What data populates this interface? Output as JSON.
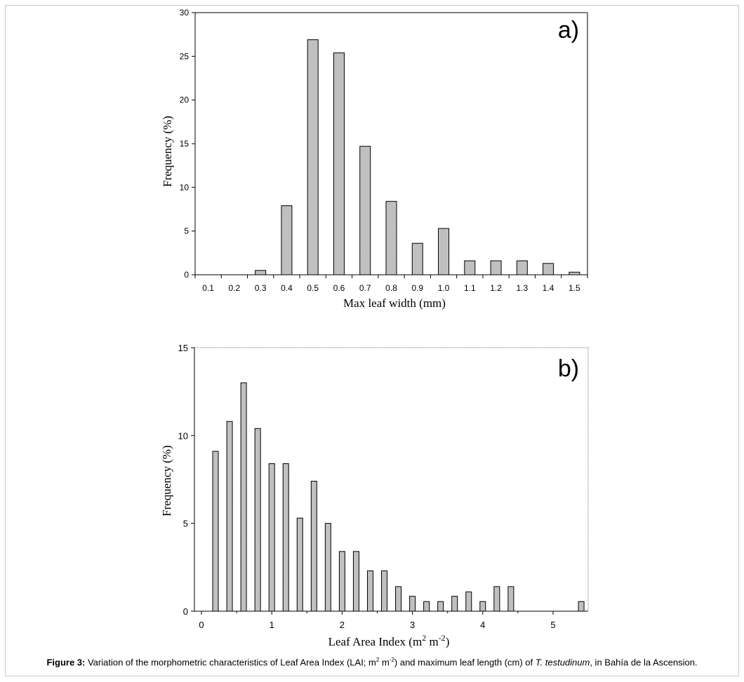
{
  "colors": {
    "bar_fill": "#d0d0d0",
    "bar_stroke": "#000000",
    "axis": "#000000",
    "frame": "#c8c8c8"
  },
  "chart_data": [
    {
      "type": "bar",
      "panel_label": "a)",
      "title": "",
      "xlabel": "Max leaf width (mm)",
      "ylabel": "Frequency (%)",
      "ylim": [
        0,
        30
      ],
      "yticks": [
        0,
        5,
        10,
        15,
        20,
        25,
        30
      ],
      "categories": [
        "0.1",
        "0.2",
        "0.3",
        "0.4",
        "0.5",
        "0.6",
        "0.7",
        "0.8",
        "0.9",
        "1.0",
        "1.1",
        "1.2",
        "1.3",
        "1.4",
        "1.5"
      ],
      "values": [
        0,
        0,
        0.5,
        7.9,
        26.9,
        25.4,
        14.7,
        8.4,
        3.6,
        5.3,
        1.6,
        1.6,
        1.6,
        1.3,
        0.3
      ],
      "grid": false,
      "legend": "none"
    },
    {
      "type": "bar",
      "panel_label": "b)",
      "title": "",
      "xlabel": "Leaf Area Index (m",
      "xlabel_sup1": "2",
      "xlabel_mid": " m",
      "xlabel_sup2": "-2",
      "xlabel_end": ")",
      "ylabel": "Frequency (%)",
      "xlim": [
        0,
        5.5
      ],
      "xticks": [
        0,
        1,
        2,
        3,
        4,
        5
      ],
      "ylim": [
        0,
        15
      ],
      "yticks": [
        0,
        5,
        10,
        15
      ],
      "x": [
        0.2,
        0.4,
        0.6,
        0.8,
        1.0,
        1.2,
        1.4,
        1.6,
        1.8,
        2.0,
        2.2,
        2.4,
        2.6,
        2.8,
        3.0,
        3.2,
        3.4,
        3.6,
        3.8,
        4.0,
        4.2,
        4.4,
        4.6,
        4.8,
        5.0,
        5.2,
        5.4
      ],
      "values": [
        9.1,
        10.8,
        13.0,
        10.4,
        8.4,
        8.4,
        5.3,
        7.4,
        5.0,
        3.4,
        3.4,
        2.3,
        2.3,
        1.4,
        0.85,
        0.55,
        0.55,
        0.85,
        1.1,
        0.55,
        1.4,
        1.4,
        0,
        0,
        0,
        0,
        0.55
      ],
      "grid": false,
      "legend": "none"
    }
  ],
  "caption": {
    "label": "Figure 3:",
    "text1": " Variation of the morphometric characteristics of Leaf Area Index (LAI; m",
    "sup1": "2",
    "text2": " m",
    "sup2": "-2",
    "text3": ") and maximum leaf length (cm) of ",
    "species": "T. testudinum",
    "text4": ", in Bahía de la Ascension."
  }
}
